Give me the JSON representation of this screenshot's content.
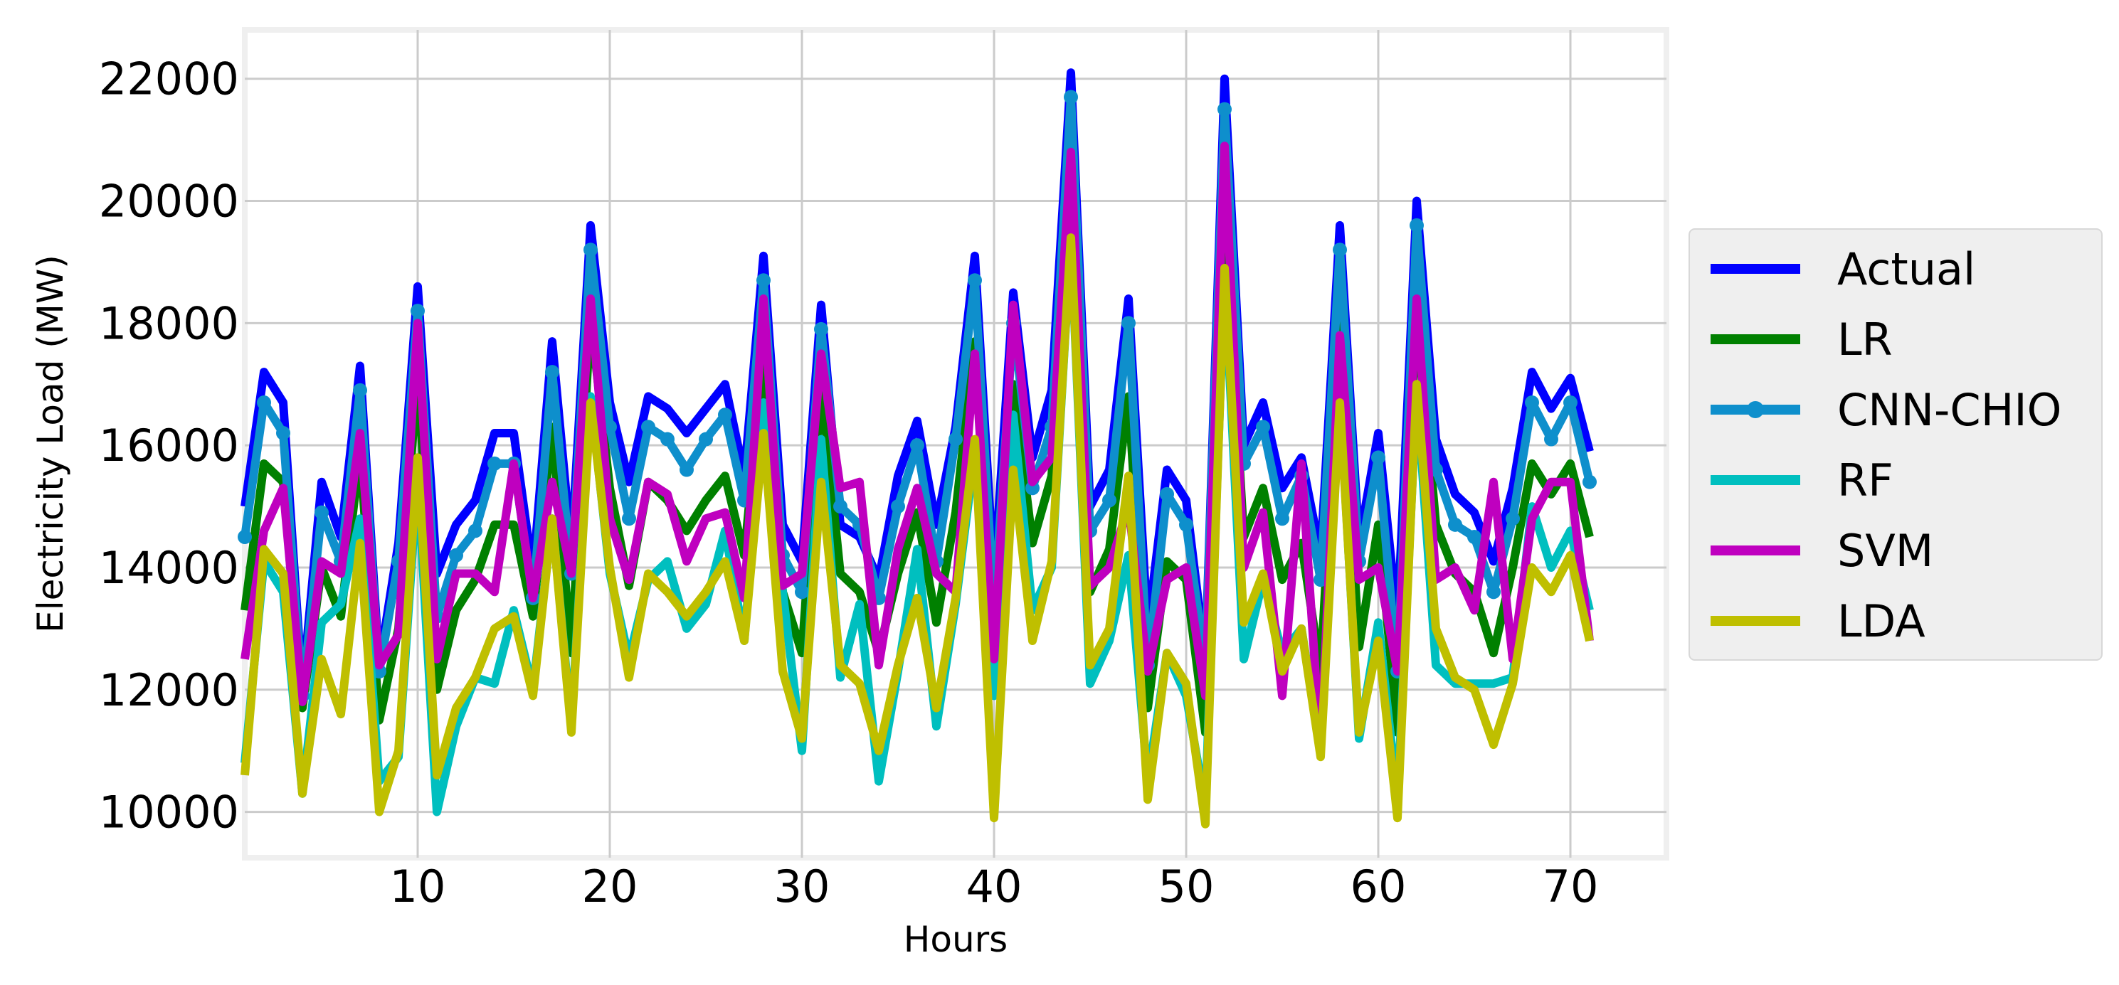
{
  "chart_data": {
    "type": "line",
    "title": "",
    "xlabel": "Hours",
    "ylabel": "Electricity Load (MW)",
    "xlim": [
      1,
      75
    ],
    "ylim": [
      9250,
      22800
    ],
    "xticks": [
      10,
      20,
      30,
      40,
      50,
      60,
      70
    ],
    "yticks": [
      10000,
      12000,
      14000,
      16000,
      18000,
      20000,
      22000
    ],
    "grid": true,
    "legend_position": "right",
    "x": [
      1,
      2,
      3,
      4,
      5,
      6,
      7,
      8,
      9,
      10,
      11,
      12,
      13,
      14,
      15,
      16,
      17,
      18,
      19,
      20,
      21,
      22,
      23,
      24,
      25,
      26,
      27,
      28,
      29,
      30,
      31,
      32,
      33,
      34,
      35,
      36,
      37,
      38,
      39,
      40,
      41,
      42,
      43,
      44,
      45,
      46,
      47,
      48,
      49,
      50,
      51,
      52,
      53,
      54,
      55,
      56,
      57,
      58,
      59,
      60,
      61,
      62,
      63,
      64,
      65,
      66,
      67,
      68,
      69,
      70,
      71
    ],
    "series": [
      {
        "name": "Actual",
        "color": "#0000ff",
        "marker": false,
        "values": [
          15000,
          17200,
          16700,
          12000,
          15400,
          14500,
          17300,
          12400,
          14400,
          18600,
          13900,
          14700,
          15100,
          16200,
          16200,
          13900,
          17700,
          14300,
          19600,
          16700,
          15400,
          16800,
          16600,
          16200,
          16600,
          17000,
          15500,
          19100,
          14700,
          14100,
          18300,
          14700,
          14500,
          13800,
          15500,
          16400,
          14700,
          16300,
          19100,
          13800,
          18500,
          15800,
          16900,
          22100,
          15000,
          15600,
          18400,
          13000,
          15600,
          15100,
          12500,
          22000,
          16000,
          16700,
          15300,
          15800,
          14200,
          19600,
          14400,
          16200,
          13100,
          20000,
          16100,
          15200,
          14900,
          14100,
          15300,
          17200,
          16600,
          17100,
          15900
        ]
      },
      {
        "name": "LR",
        "color": "#008000",
        "marker": false,
        "values": [
          13300,
          15700,
          15400,
          11700,
          14000,
          13200,
          15900,
          11500,
          13000,
          17200,
          12000,
          13300,
          13800,
          14700,
          14700,
          13200,
          16300,
          12600,
          18100,
          15300,
          13700,
          15400,
          15100,
          14600,
          15100,
          15500,
          14200,
          17500,
          13600,
          12600,
          17000,
          13900,
          13600,
          12600,
          13900,
          14900,
          13100,
          14900,
          17700,
          12600,
          17000,
          14400,
          15500,
          20200,
          13600,
          14300,
          16800,
          11700,
          14100,
          13800,
          11300,
          19900,
          14500,
          15300,
          13800,
          14400,
          12300,
          18000,
          12700,
          14700,
          11300,
          18300,
          14700,
          13900,
          13600,
          12600,
          14000,
          15700,
          15200,
          15700,
          14500
        ]
      },
      {
        "name": "CNN-CHIO",
        "color": "#0e8fcc",
        "marker": true,
        "values": [
          14500,
          16700,
          16200,
          11900,
          14900,
          14100,
          16900,
          12300,
          14100,
          18200,
          13200,
          14200,
          14600,
          15700,
          15700,
          13500,
          17200,
          13900,
          19200,
          16300,
          14800,
          16300,
          16100,
          15600,
          16100,
          16500,
          15100,
          18700,
          14200,
          13600,
          17900,
          15000,
          14700,
          13500,
          15000,
          16000,
          14100,
          16100,
          18700,
          13300,
          18000,
          15300,
          16300,
          21700,
          14600,
          15100,
          18000,
          12400,
          15200,
          14700,
          12400,
          21500,
          15700,
          16300,
          14800,
          15500,
          13800,
          19200,
          14100,
          15800,
          12300,
          19600,
          15600,
          14700,
          14500,
          13600,
          14800,
          16700,
          16100,
          16700,
          15400
        ]
      },
      {
        "name": "RF",
        "color": "#00bfbf",
        "marker": false,
        "values": [
          10800,
          14100,
          13600,
          10300,
          13100,
          13400,
          14800,
          10500,
          10900,
          15500,
          10000,
          11400,
          12200,
          12100,
          13300,
          12000,
          14800,
          11400,
          16800,
          13900,
          12500,
          13800,
          14100,
          13000,
          13400,
          14600,
          12800,
          16700,
          13600,
          11000,
          16100,
          12200,
          13400,
          10500,
          12300,
          14300,
          11400,
          13400,
          15900,
          11900,
          16500,
          13300,
          14000,
          19400,
          12100,
          12800,
          14200,
          10500,
          12600,
          11900,
          10100,
          18800,
          12500,
          13800,
          12600,
          13000,
          11000,
          16800,
          11200,
          13100,
          10200,
          16900,
          12400,
          12100,
          12100,
          12100,
          12200,
          15000,
          14000,
          14600,
          13300
        ]
      },
      {
        "name": "SVM",
        "color": "#bf00bf",
        "marker": false,
        "values": [
          12500,
          14600,
          15300,
          11800,
          14100,
          13900,
          16200,
          12400,
          12900,
          18000,
          12500,
          13900,
          13900,
          13600,
          15700,
          13500,
          15400,
          13900,
          18400,
          14800,
          13800,
          15400,
          15200,
          14100,
          14800,
          14900,
          13500,
          18400,
          13700,
          13900,
          17500,
          15300,
          15400,
          12400,
          14300,
          15300,
          13900,
          13600,
          17500,
          12500,
          18300,
          15400,
          15800,
          20800,
          13700,
          14000,
          15000,
          12300,
          13800,
          14000,
          11900,
          20900,
          14000,
          14900,
          11900,
          15700,
          11000,
          17800,
          13800,
          14000,
          12300,
          18400,
          13800,
          14000,
          13300,
          15400,
          12500,
          14800,
          15400,
          15400,
          12800
        ]
      },
      {
        "name": "LDA",
        "color": "#bfbf00",
        "marker": false,
        "values": [
          10600,
          14300,
          13900,
          10300,
          12500,
          11600,
          14400,
          10000,
          11000,
          15800,
          10600,
          11700,
          12200,
          13000,
          13200,
          11900,
          14800,
          11300,
          16700,
          14000,
          12200,
          13900,
          13600,
          13200,
          13600,
          14100,
          12800,
          16200,
          12300,
          11200,
          15400,
          12400,
          12100,
          11000,
          12400,
          13500,
          11700,
          13500,
          16100,
          9900,
          15600,
          12800,
          14100,
          19400,
          12400,
          13000,
          15500,
          10200,
          12600,
          12100,
          9800,
          18900,
          13100,
          13900,
          12300,
          13000,
          10900,
          16700,
          11300,
          12800,
          9900,
          17000,
          13000,
          12200,
          12000,
          11100,
          12100,
          14000,
          13600,
          14200,
          12800
        ]
      }
    ]
  }
}
